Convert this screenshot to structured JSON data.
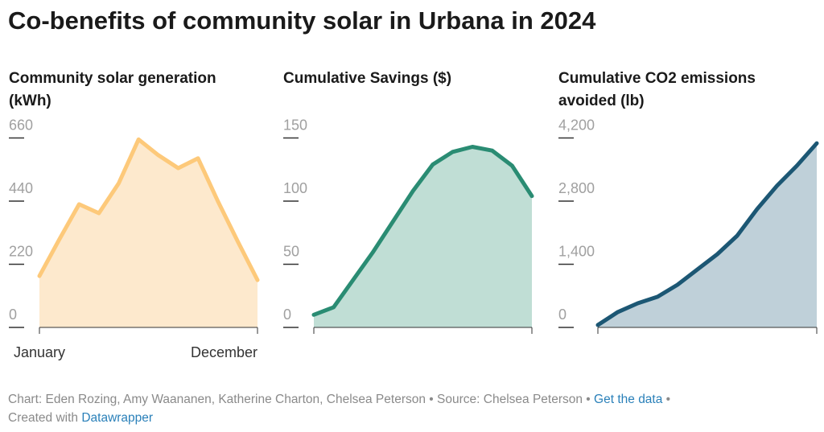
{
  "title": "Co-benefits of community solar in Urbana in 2024",
  "chart_data": [
    {
      "type": "area",
      "title": "Community solar generation (kWh)",
      "categories": [
        "January",
        null,
        null,
        null,
        null,
        null,
        null,
        null,
        null,
        null,
        null,
        "December"
      ],
      "values": [
        179,
        306,
        429,
        398,
        502,
        655,
        600,
        555,
        589,
        440,
        300,
        165
      ],
      "color": "#fdc97a",
      "fill": "#fde9cd",
      "ylim": [
        0,
        660
      ],
      "yticks": [
        0,
        220,
        440,
        660
      ]
    },
    {
      "type": "area",
      "title": "Cumulative Savings ($)",
      "categories": [
        null,
        null,
        null,
        null,
        null,
        null,
        null,
        null,
        null,
        null,
        null,
        null
      ],
      "values": [
        10,
        16,
        38,
        60,
        84,
        108,
        129,
        139,
        143,
        140,
        128,
        104
      ],
      "color": "#2a8c73",
      "fill": "#c0ded5",
      "ylim": [
        0,
        150
      ],
      "yticks": [
        0,
        50,
        100,
        150
      ]
    },
    {
      "type": "area",
      "title": "Cumulative CO2 emissions avoided (lb)",
      "categories": [
        null,
        null,
        null,
        null,
        null,
        null,
        null,
        null,
        null,
        null,
        null,
        null
      ],
      "values": [
        53,
        340,
        535,
        680,
        945,
        1284,
        1623,
        2033,
        2621,
        3138,
        3584,
        4083
      ],
      "color": "#1c5774",
      "fill": "#bfd0d9",
      "ylim": [
        0,
        4200
      ],
      "yticks": [
        0,
        {
          "value": 1400,
          "label": "1,400"
        },
        {
          "value": 2800,
          "label": "2,800"
        },
        {
          "value": 4200,
          "label": "4,200"
        }
      ]
    }
  ],
  "footer": {
    "byline": "Chart: Eden Rozing, Amy Waananen, Katherine Charton, Chelsea Peterson",
    "separator": "•",
    "source": "Source: Chelsea Peterson",
    "data_link": "Get the data",
    "credit": "Created with",
    "credit_link": "Datawrapper"
  }
}
